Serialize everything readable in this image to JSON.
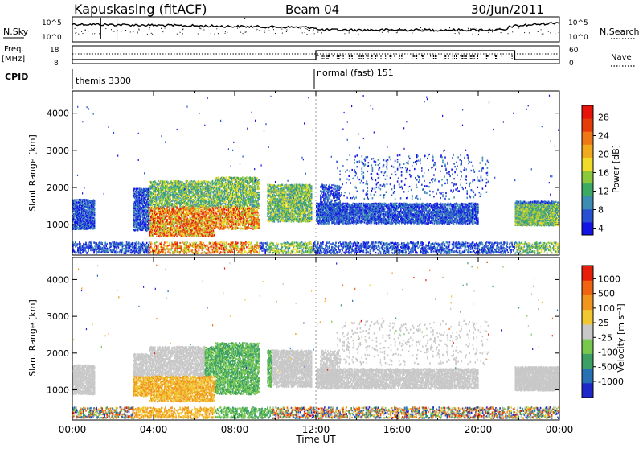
{
  "header": {
    "station": "Kapuskasing (fitACF)",
    "beam": "Beam 04",
    "date": "30/Jun/2011"
  },
  "left_labels": {
    "nsky": "N.Sky",
    "freq": "Freq.",
    "freq_unit": "[MHz]",
    "cpid": "CPID"
  },
  "right_labels": {
    "nsearch": "N.Search",
    "nave": "Nave"
  },
  "noise_ticks": [
    "10^5",
    "10^0"
  ],
  "noise_ticks_right": [
    "10^5",
    "10^0"
  ],
  "freq_ticks": [
    "18",
    "8"
  ],
  "nave_ticks": [
    "60",
    "0"
  ],
  "cpid_segments": [
    {
      "label": "themis 3300",
      "start_hour": 0
    },
    {
      "label": "normal (fast) 151",
      "start_hour": 12
    }
  ],
  "chart_data": [
    {
      "type": "heatmap",
      "panel": "power",
      "ylabel": "Slant Range [km]",
      "yticks": [
        1000,
        2000,
        3000,
        4000
      ],
      "ylim": [
        180,
        4600
      ],
      "xlim_hours": [
        0,
        24
      ],
      "colorbar": {
        "label": "Power [dB]",
        "ticks": [
          "28",
          "24",
          "20",
          "16",
          "12",
          "8",
          "4"
        ],
        "colors": [
          "#1414e6",
          "#2850d2",
          "#3c8cb4",
          "#3caa64",
          "#8cc83c",
          "#f0dc28",
          "#f0aa1e",
          "#f07814",
          "#e63c0a",
          "#e6140a"
        ]
      }
    },
    {
      "type": "heatmap",
      "panel": "velocity",
      "ylabel": "Slant Range [km]",
      "yticks": [
        1000,
        2000,
        3000,
        4000
      ],
      "ylim": [
        180,
        4600
      ],
      "xlim_hours": [
        0,
        24
      ],
      "colorbar": {
        "label": "Velocity [m s⁻¹]",
        "ticks": [
          "1000",
          "500",
          "100",
          "25",
          "-25",
          "-100",
          "-500",
          "-1000"
        ],
        "colors": [
          "#1e28c8",
          "#2870b4",
          "#3ca064",
          "#78c850",
          "#c8c8c8",
          "#f0c832",
          "#f0961e",
          "#f0640f",
          "#e61e0a"
        ]
      }
    }
  ],
  "xaxis": {
    "ticks": [
      "00:00",
      "04:00",
      "08:00",
      "12:00",
      "16:00",
      "20:00",
      "00:00"
    ],
    "label": "Time UT"
  }
}
